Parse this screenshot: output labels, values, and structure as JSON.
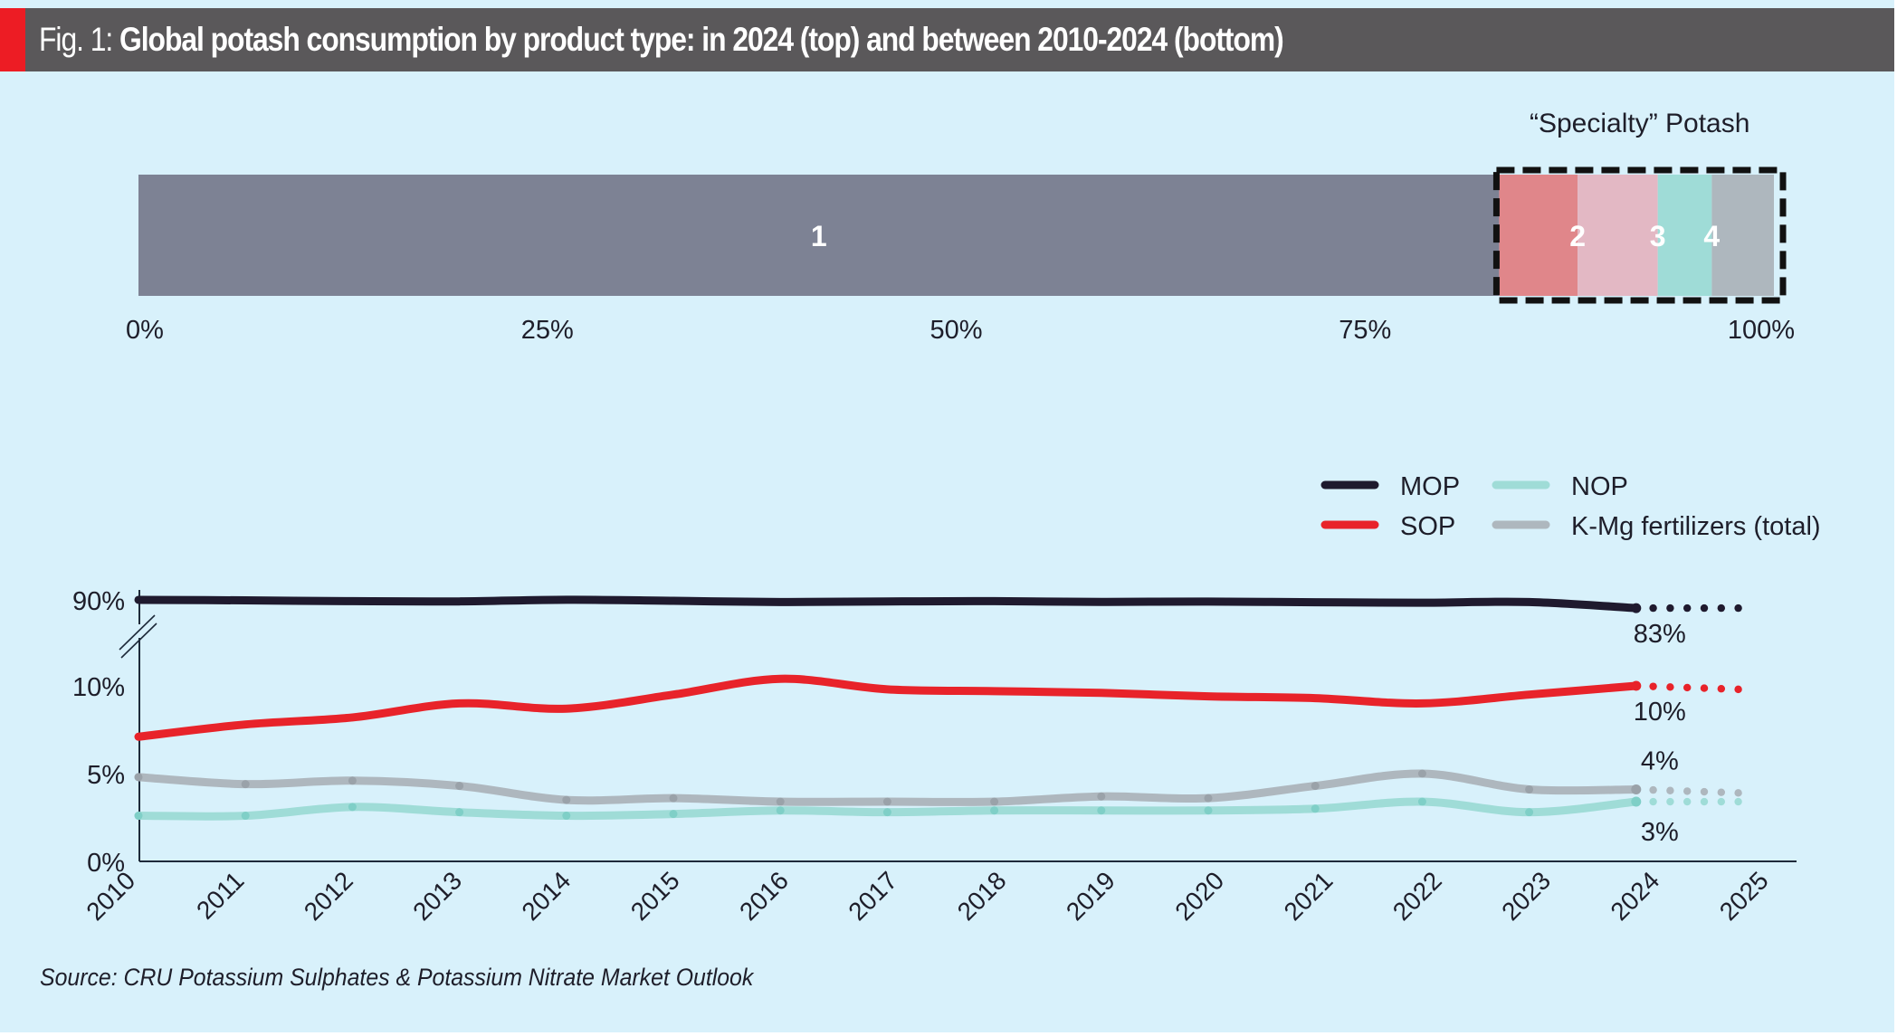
{
  "header": {
    "prefix": "Fig. 1: ",
    "title": "Global potash consumption by product type: in 2024 (top) and between 2010-2024 (bottom)"
  },
  "source": "Source: CRU Potassium Sulphates & Potassium Nitrate Market Outlook",
  "colors": {
    "background": "#d8f1fb",
    "header_bg": "#5a585a",
    "accent": "#ed1c24",
    "mop": "#1f1a2e",
    "sop": "#e8232a",
    "nop": "#9fdcd7",
    "kmg": "#aeb7be"
  },
  "chart_data": [
    {
      "type": "bar",
      "orientation": "horizontal-stacked",
      "title": "Global potash consumption by product type in 2024",
      "annotation": "“Specialty” Potash",
      "xlim": [
        0,
        100
      ],
      "x_ticks": [
        "0%",
        "25%",
        "50%",
        "75%",
        "100%"
      ],
      "x_tick_values": [
        0,
        25,
        50,
        75,
        100
      ],
      "segments": [
        {
          "label": "1",
          "value": 83.2,
          "color": "#7d8294",
          "specialty": false
        },
        {
          "label": "2",
          "value": 4.8,
          "color": "#e0868a",
          "specialty": true
        },
        {
          "label": "",
          "value": 4.9,
          "color": "#e3b8c4",
          "specialty": true
        },
        {
          "label": "3",
          "value": 3.3,
          "color": "#9fdcd7",
          "specialty": true
        },
        {
          "label": "4",
          "value": 3.8,
          "color": "#aeb7be",
          "specialty": true
        }
      ],
      "segment_label_positions": [
        "center",
        "end",
        "none",
        "start",
        "start"
      ]
    },
    {
      "type": "line",
      "title": "Global potash consumption share by product type, 2010-2024",
      "x": [
        2010,
        2011,
        2012,
        2013,
        2014,
        2015,
        2016,
        2017,
        2018,
        2019,
        2020,
        2021,
        2022,
        2023,
        2024
      ],
      "x_ticks": [
        "2010",
        "2011",
        "2012",
        "2013",
        "2014",
        "2015",
        "2016",
        "2017",
        "2018",
        "2019",
        "2020",
        "2021",
        "2022",
        "2023",
        "2024",
        "2025"
      ],
      "y_ticks": [
        "0%",
        "5%",
        "10%",
        "90%"
      ],
      "y_tick_values": [
        0,
        5,
        10,
        90
      ],
      "y_axis_break": "between 10% and 90%",
      "ylim": [
        0,
        90
      ],
      "legend": {
        "placement": "top-right",
        "entries": [
          {
            "name": "MOP",
            "color": "#1f1a2e"
          },
          {
            "name": "SOP",
            "color": "#e8232a"
          },
          {
            "name": "NOP",
            "color": "#9fdcd7"
          },
          {
            "name": "K-Mg fertilizers (total)",
            "color": "#aeb7be"
          }
        ]
      },
      "series": [
        {
          "name": "MOP",
          "color": "#1f1a2e",
          "values": [
            90,
            89.6,
            88.9,
            88.7,
            90.1,
            89.2,
            88.2,
            88.7,
            88.9,
            88.3,
            88.6,
            88.0,
            87.6,
            88.2,
            83
          ],
          "end_label": "83%",
          "projection_end": 83
        },
        {
          "name": "SOP",
          "color": "#e8232a",
          "values": [
            7.1,
            7.8,
            8.2,
            9.0,
            8.7,
            9.5,
            10.4,
            9.8,
            9.7,
            9.6,
            9.4,
            9.3,
            9.0,
            9.5,
            10.0
          ],
          "end_label": "10%",
          "projection_end": 9.8
        },
        {
          "name": "NOP",
          "color": "#9fdcd7",
          "values": [
            2.6,
            2.6,
            3.1,
            2.8,
            2.6,
            2.7,
            2.9,
            2.8,
            2.9,
            2.9,
            2.9,
            3.0,
            3.4,
            2.8,
            3.4
          ],
          "end_label": "3%",
          "projection_end": 3.4
        },
        {
          "name": "K-Mg fertilizers (total)",
          "color": "#aeb7be",
          "values": [
            4.8,
            4.4,
            4.6,
            4.3,
            3.5,
            3.6,
            3.4,
            3.4,
            3.4,
            3.7,
            3.6,
            4.3,
            5.0,
            4.1,
            4.1
          ],
          "end_label": "4%",
          "projection_end": 3.9
        }
      ],
      "projection": "dotted extension from 2024 toward 2025"
    }
  ]
}
